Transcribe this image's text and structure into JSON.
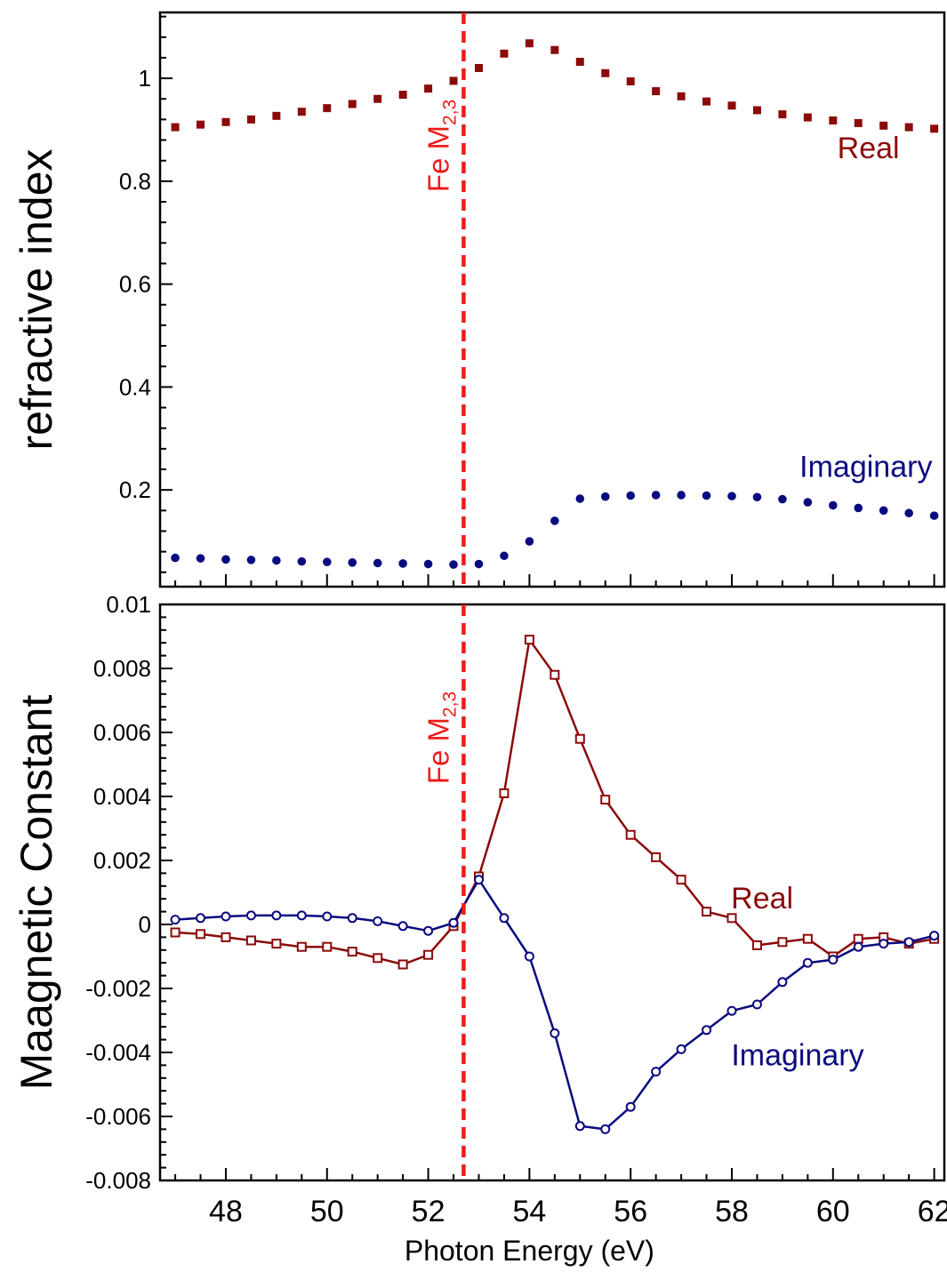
{
  "colors": {
    "real": "#8B0A0A",
    "imaginary": "#0A0A80",
    "edge_marker": "#EE1C1C",
    "axis": "#000000"
  },
  "xaxis": {
    "label": "Photon Energy (eV)",
    "range": [
      46.7,
      62.2
    ],
    "ticks": [
      "48",
      "50",
      "52",
      "54",
      "56",
      "58",
      "60",
      "62"
    ]
  },
  "edge_marker": {
    "x": 52.7,
    "label_main": "Fe M",
    "label_sub": "2,3"
  },
  "chart_data": [
    {
      "type": "scatter",
      "ylabel": "refractive index",
      "xlim": [
        46.7,
        62.2
      ],
      "ylim": [
        0.012,
        1.128
      ],
      "yticks": [
        "0.2",
        "0.4",
        "0.6",
        "0.8",
        "1"
      ],
      "series": [
        {
          "name": "Real",
          "marker": "square",
          "x": [
            47,
            47.5,
            48,
            48.5,
            49,
            49.5,
            50,
            50.5,
            51,
            51.5,
            52,
            52.5,
            53,
            53.5,
            54,
            54.5,
            55,
            55.5,
            56,
            56.5,
            57,
            57.5,
            58,
            58.5,
            59,
            59.5,
            60,
            60.5,
            61,
            61.5,
            62
          ],
          "y": [
            0.905,
            0.91,
            0.915,
            0.92,
            0.927,
            0.935,
            0.942,
            0.95,
            0.96,
            0.968,
            0.98,
            0.995,
            1.02,
            1.048,
            1.068,
            1.055,
            1.032,
            1.01,
            0.994,
            0.975,
            0.965,
            0.955,
            0.947,
            0.938,
            0.93,
            0.924,
            0.918,
            0.913,
            0.908,
            0.905,
            0.902
          ]
        },
        {
          "name": "Imaginary",
          "marker": "circle",
          "x": [
            47,
            47.5,
            48,
            48.5,
            49,
            49.5,
            50,
            50.5,
            51,
            51.5,
            52,
            52.5,
            53,
            53.5,
            54,
            54.5,
            55,
            55.5,
            56,
            56.5,
            57,
            57.5,
            58,
            58.5,
            59,
            59.5,
            60,
            60.5,
            61,
            61.5,
            62
          ],
          "y": [
            0.068,
            0.067,
            0.065,
            0.064,
            0.063,
            0.061,
            0.06,
            0.059,
            0.058,
            0.057,
            0.056,
            0.055,
            0.056,
            0.072,
            0.1,
            0.14,
            0.183,
            0.187,
            0.189,
            0.19,
            0.19,
            0.189,
            0.188,
            0.186,
            0.182,
            0.176,
            0.17,
            0.165,
            0.16,
            0.155,
            0.15
          ]
        }
      ],
      "annotations": [
        {
          "text": "Real",
          "x": 60.7,
          "y": 0.845
        },
        {
          "text": "Imaginary",
          "x": 60.65,
          "y": 0.225
        }
      ]
    },
    {
      "type": "line",
      "ylabel": "Maagnetic Constant",
      "xlim": [
        46.7,
        62.2
      ],
      "ylim": [
        -0.008,
        0.01
      ],
      "yticks": [
        "-0.008",
        "-0.006",
        "-0.004",
        "-0.002",
        "0",
        "0.002",
        "0.004",
        "0.006",
        "0.008",
        "0.01"
      ],
      "series": [
        {
          "name": "Real",
          "marker": "square",
          "x": [
            47,
            47.5,
            48,
            48.5,
            49,
            49.5,
            50,
            50.5,
            51,
            51.5,
            52,
            52.5,
            53,
            53.5,
            54,
            54.5,
            55,
            55.5,
            56,
            56.5,
            57,
            57.5,
            58,
            58.5,
            59,
            59.5,
            60,
            60.5,
            61,
            61.5,
            62
          ],
          "y": [
            -0.00025,
            -0.0003,
            -0.0004,
            -0.0005,
            -0.0006,
            -0.0007,
            -0.0007,
            -0.00085,
            -0.00105,
            -0.00125,
            -0.00095,
            -5e-05,
            0.0015,
            0.0041,
            0.0089,
            0.0078,
            0.0058,
            0.0039,
            0.0028,
            0.0021,
            0.0014,
            0.0004,
            0.0002,
            -0.00065,
            -0.00055,
            -0.00045,
            -0.001,
            -0.00045,
            -0.0004,
            -0.0006,
            -0.00045
          ]
        },
        {
          "name": "Imaginary",
          "marker": "circle",
          "x": [
            47,
            47.5,
            48,
            48.5,
            49,
            49.5,
            50,
            50.5,
            51,
            51.5,
            52,
            52.5,
            53,
            53.5,
            54,
            54.5,
            55,
            55.5,
            56,
            56.5,
            57,
            57.5,
            58,
            58.5,
            59,
            59.5,
            60,
            60.5,
            61,
            61.5,
            62
          ],
          "y": [
            0.00015,
            0.0002,
            0.00025,
            0.00028,
            0.00028,
            0.00028,
            0.00025,
            0.0002,
            0.0001,
            -5e-05,
            -0.0002,
            5e-05,
            0.0014,
            0.0002,
            -0.001,
            -0.0034,
            -0.0063,
            -0.0064,
            -0.0057,
            -0.0046,
            -0.0039,
            -0.0033,
            -0.0027,
            -0.0025,
            -0.0018,
            -0.0012,
            -0.0011,
            -0.0007,
            -0.0006,
            -0.00055,
            -0.00035
          ]
        }
      ],
      "annotations": [
        {
          "text": "Real",
          "x": 58.6,
          "y": 0.0005
        },
        {
          "text": "Imaginary",
          "x": 59.3,
          "y": -0.0044
        }
      ]
    }
  ]
}
